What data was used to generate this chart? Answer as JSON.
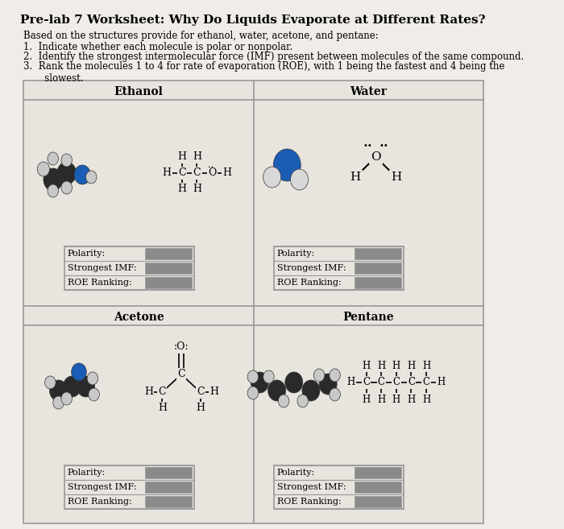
{
  "title": "Pre-lab 7 Worksheet: Why Do Liquids Evaporate at Different Rates?",
  "intro_text": "Based on the structures provide for ethanol, water, acetone, and pentane:",
  "bullet1": "1.  Indicate whether each molecule is polar or nonpolar.",
  "bullet2": "2.  Identify the strongest intermolecular force (IMF) present between molecules of the same compound.",
  "bullet3": "3.  Rank the molecules 1 to 4 for rate of evaporation (ROE), with 1 being the fastest and 4 being the\n       slowest.",
  "cell_headers": [
    "Ethanol",
    "Water",
    "Acetone",
    "Pentane"
  ],
  "row_labels": [
    "Polarity:",
    "Strongest IMF:",
    "ROE Ranking:"
  ],
  "bg_color": "#f0ede8",
  "table_bg": "#e8e4de",
  "cell_bg": "#dedad4",
  "header_color": "#000000",
  "grid_color": "#999999",
  "filled_box_color": "#8a8a8a",
  "title_fontsize": 11,
  "body_fontsize": 9
}
